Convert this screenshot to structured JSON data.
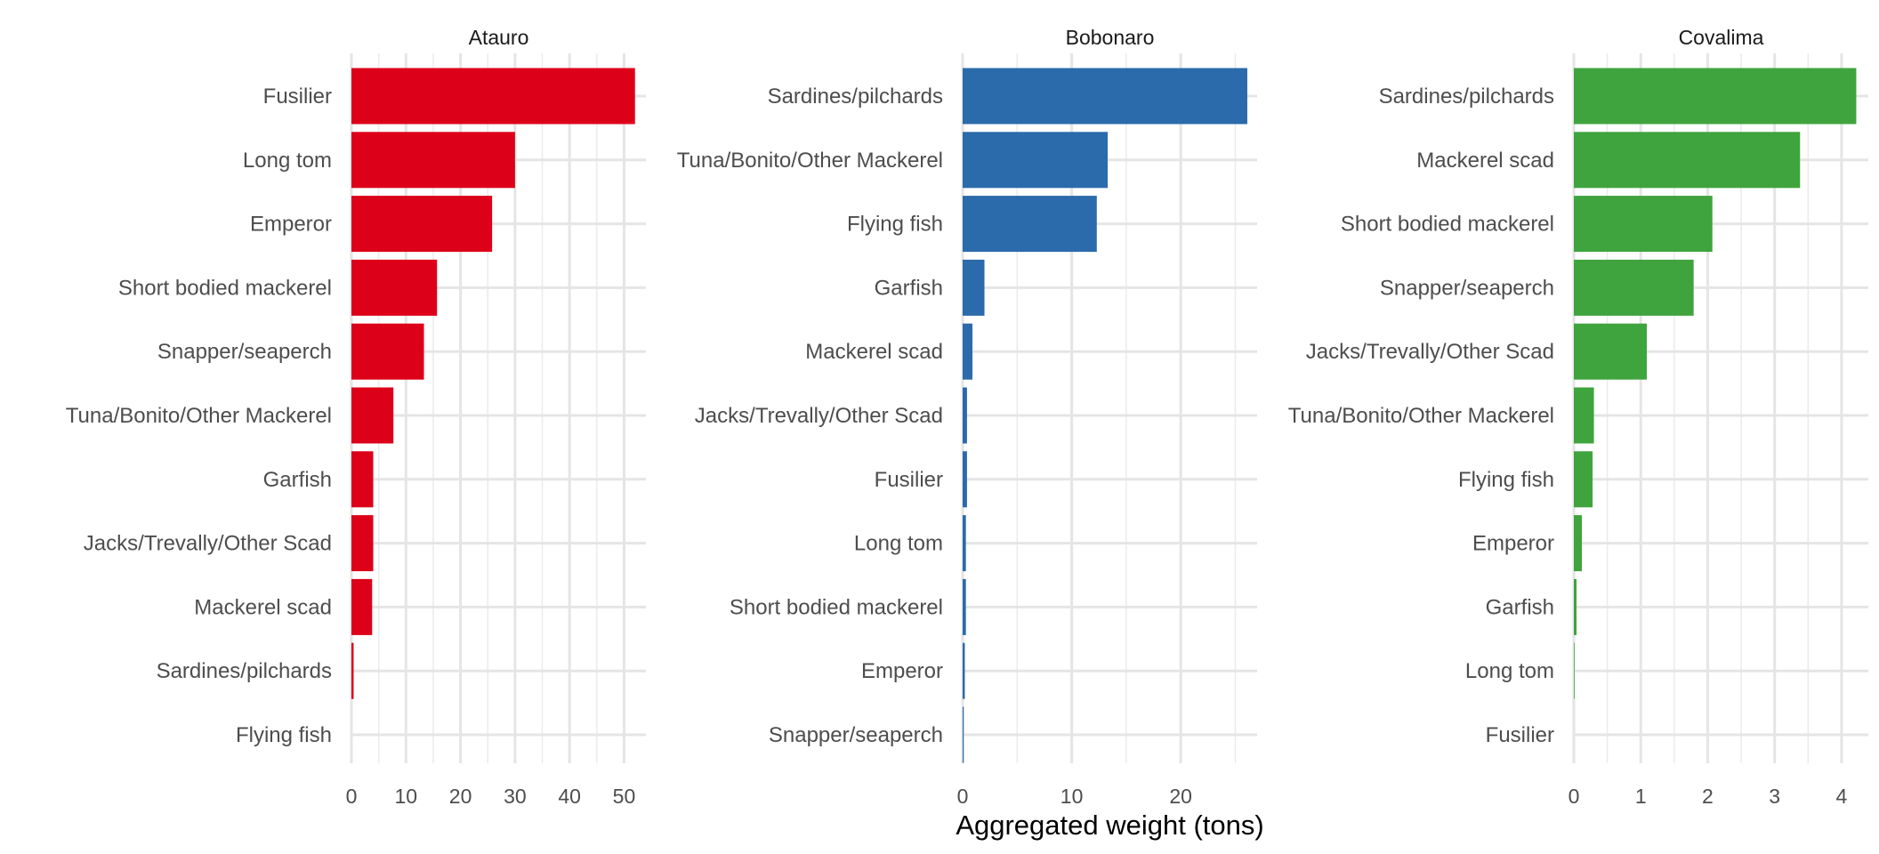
{
  "chart_data": {
    "type": "bar",
    "orientation": "horizontal",
    "xlabel": "Aggregated weight (tons)",
    "grid": true,
    "legend": "none",
    "facets": [
      {
        "name": "Atauro",
        "color": "#DC0019",
        "xlim": [
          0,
          54
        ],
        "xticks": [
          0,
          10,
          20,
          30,
          40,
          50
        ],
        "categories": [
          "Fusilier",
          "Long tom",
          "Emperor",
          "Short bodied mackerel",
          "Snapper/seaperch",
          "Tuna/Bonito/Other Mackerel",
          "Garfish",
          "Jacks/Trevally/Other Scad",
          "Mackerel scad",
          "Sardines/pilchards",
          "Flying fish"
        ],
        "values": [
          52.0,
          30.0,
          25.8,
          15.7,
          13.3,
          7.7,
          4.0,
          4.0,
          3.8,
          0.4,
          0.0
        ]
      },
      {
        "name": "Bobonaro",
        "color": "#2B6AAB",
        "xlim": [
          0,
          27
        ],
        "xticks": [
          0,
          10,
          20
        ],
        "categories": [
          "Sardines/pilchards",
          "Tuna/Bonito/Other Mackerel",
          "Flying fish",
          "Garfish",
          "Mackerel scad",
          "Jacks/Trevally/Other Scad",
          "Fusilier",
          "Long tom",
          "Short bodied mackerel",
          "Emperor",
          "Snapper/seaperch"
        ],
        "values": [
          26.1,
          13.3,
          12.3,
          2.0,
          0.9,
          0.4,
          0.4,
          0.3,
          0.3,
          0.2,
          0.1
        ]
      },
      {
        "name": "Covalima",
        "color": "#3FA43D",
        "xlim": [
          0,
          4.4
        ],
        "xticks": [
          0,
          1,
          2,
          3,
          4
        ],
        "categories": [
          "Sardines/pilchards",
          "Mackerel scad",
          "Short bodied mackerel",
          "Snapper/seaperch",
          "Jacks/Trevally/Other Scad",
          "Tuna/Bonito/Other Mackerel",
          "Flying fish",
          "Emperor",
          "Garfish",
          "Long tom",
          "Fusilier"
        ],
        "values": [
          4.22,
          3.38,
          2.07,
          1.79,
          1.09,
          0.3,
          0.28,
          0.12,
          0.04,
          0.01,
          0.0
        ]
      }
    ]
  }
}
